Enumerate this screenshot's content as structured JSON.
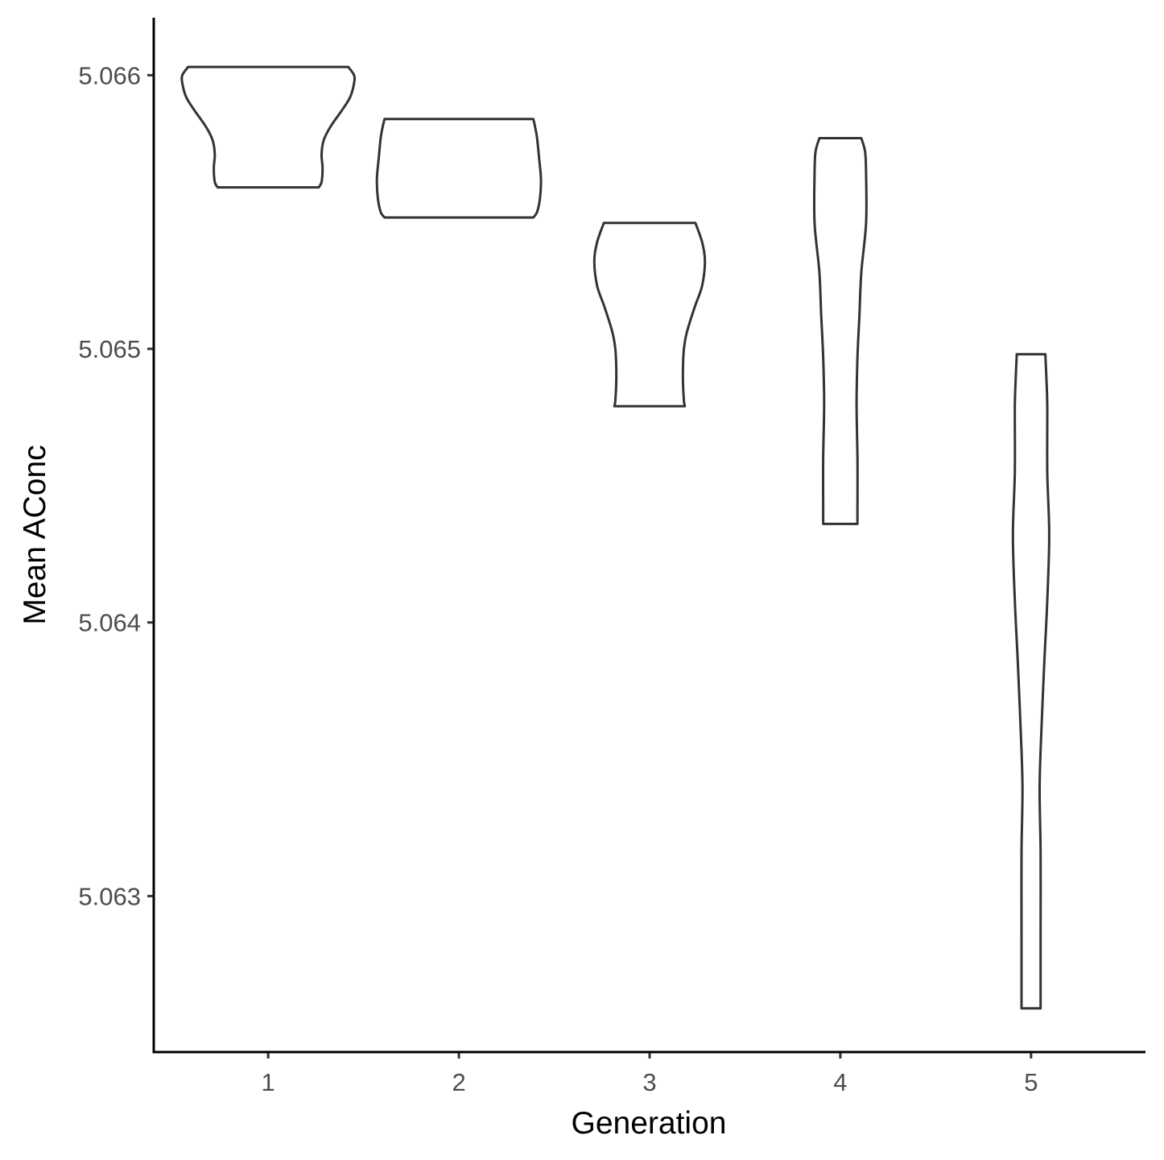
{
  "chart_data": {
    "type": "violin",
    "xlabel": "Generation",
    "ylabel": "Mean AConc",
    "categories": [
      "1",
      "2",
      "3",
      "4",
      "5"
    ],
    "y_ticks": [
      "5.063",
      "5.064",
      "5.065",
      "5.066"
    ],
    "ylim": [
      5.06243,
      5.06621
    ],
    "grid": false,
    "legend": "none",
    "colors": {
      "outline": "#333333",
      "fill": "#ffffff",
      "axis": "#000000",
      "tick_label": "#4d4d4d"
    },
    "violins": [
      {
        "category": "1",
        "profile": [
          [
            5.06559,
            0.53
          ],
          [
            5.06561,
            0.56
          ],
          [
            5.06566,
            0.57
          ],
          [
            5.06571,
            0.56
          ],
          [
            5.06576,
            0.58
          ],
          [
            5.06581,
            0.65
          ],
          [
            5.06587,
            0.77
          ],
          [
            5.06592,
            0.86
          ],
          [
            5.06597,
            0.9
          ],
          [
            5.066,
            0.9
          ],
          [
            5.06603,
            0.84
          ]
        ]
      },
      {
        "category": "2",
        "profile": [
          [
            5.06548,
            0.78
          ],
          [
            5.0655,
            0.82
          ],
          [
            5.06555,
            0.85
          ],
          [
            5.06562,
            0.86
          ],
          [
            5.0657,
            0.84
          ],
          [
            5.06577,
            0.82
          ],
          [
            5.06581,
            0.8
          ],
          [
            5.06584,
            0.78
          ]
        ]
      },
      {
        "category": "3",
        "profile": [
          [
            5.06479,
            0.37
          ],
          [
            5.06481,
            0.36
          ],
          [
            5.06487,
            0.35
          ],
          [
            5.06494,
            0.35
          ],
          [
            5.065,
            0.36
          ],
          [
            5.06506,
            0.39
          ],
          [
            5.06515,
            0.47
          ],
          [
            5.06523,
            0.55
          ],
          [
            5.06532,
            0.58
          ],
          [
            5.06539,
            0.55
          ],
          [
            5.06546,
            0.48
          ]
        ]
      },
      {
        "category": "4",
        "profile": [
          [
            5.06436,
            0.18
          ],
          [
            5.06442,
            0.18
          ],
          [
            5.0646,
            0.18
          ],
          [
            5.0648,
            0.17
          ],
          [
            5.06497,
            0.18
          ],
          [
            5.06512,
            0.2
          ],
          [
            5.06528,
            0.22
          ],
          [
            5.06546,
            0.27
          ],
          [
            5.06564,
            0.27
          ],
          [
            5.06572,
            0.26
          ],
          [
            5.06577,
            0.22
          ]
        ]
      },
      {
        "category": "5",
        "profile": [
          [
            5.06259,
            0.1
          ],
          [
            5.06265,
            0.1
          ],
          [
            5.06287,
            0.1
          ],
          [
            5.06316,
            0.1
          ],
          [
            5.0634,
            0.09
          ],
          [
            5.06362,
            0.11
          ],
          [
            5.06386,
            0.14
          ],
          [
            5.06408,
            0.17
          ],
          [
            5.06432,
            0.19
          ],
          [
            5.06455,
            0.17
          ],
          [
            5.06479,
            0.17
          ],
          [
            5.0649,
            0.16
          ],
          [
            5.06498,
            0.15
          ]
        ]
      }
    ]
  }
}
